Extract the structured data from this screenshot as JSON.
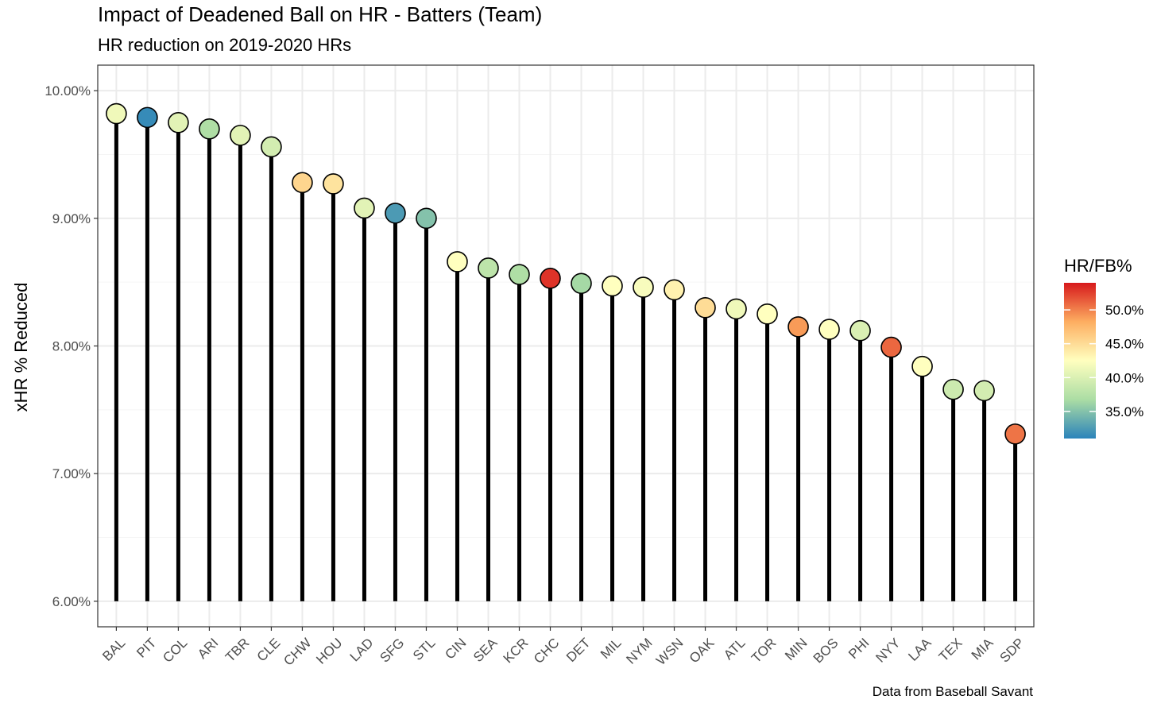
{
  "chart_data": {
    "type": "lollipop",
    "title": "Impact of Deadened Ball on HR - Batters (Team)",
    "subtitle": "HR reduction on 2019-2020 HRs",
    "ylabel": "xHR % Reduced",
    "xlabel": "",
    "caption": "Data from Baseball Savant",
    "ylim": [
      6.0,
      10.0
    ],
    "baseline": 6.0,
    "y_ticks": [
      6,
      7,
      8,
      9,
      10
    ],
    "y_tick_labels": [
      "6.00%",
      "7.00%",
      "8.00%",
      "9.00%",
      "10.00%"
    ],
    "grid": true,
    "categories": [
      "BAL",
      "PIT",
      "COL",
      "ARI",
      "TBR",
      "CLE",
      "CHW",
      "HOU",
      "LAD",
      "SFG",
      "STL",
      "CIN",
      "SEA",
      "KCR",
      "CHC",
      "DET",
      "MIL",
      "NYM",
      "WSN",
      "OAK",
      "ATL",
      "TOR",
      "MIN",
      "BOS",
      "PHI",
      "NYY",
      "LAA",
      "TEX",
      "MIA",
      "SDP"
    ],
    "values": [
      9.82,
      9.79,
      9.75,
      9.7,
      9.65,
      9.56,
      9.28,
      9.27,
      9.08,
      9.04,
      9.0,
      8.66,
      8.61,
      8.56,
      8.53,
      8.49,
      8.47,
      8.46,
      8.44,
      8.3,
      8.29,
      8.25,
      8.15,
      8.13,
      8.12,
      7.99,
      7.84,
      7.66,
      7.65,
      7.31
    ],
    "color_values": [
      41.5,
      31.5,
      40.5,
      37.0,
      40.5,
      39.5,
      45.5,
      44.5,
      40.5,
      32.5,
      35.0,
      42.5,
      38.0,
      37.0,
      53.0,
      36.5,
      42.5,
      42.0,
      43.5,
      45.0,
      41.5,
      42.5,
      49.0,
      42.5,
      40.0,
      51.0,
      42.5,
      39.0,
      39.5,
      50.5
    ],
    "legend": {
      "title": "HR/FB%",
      "placement": "right",
      "labels": [
        "50.0%",
        "45.0%",
        "40.0%",
        "35.0%"
      ],
      "values": [
        50,
        45,
        40,
        35
      ],
      "range": [
        31,
        54
      ]
    },
    "colors": {
      "stem": "#000000",
      "grid_major": "#ebebeb",
      "grid_minor": "#f5f5f5",
      "panel_border": "#333333",
      "scale_stops": [
        "#2b83ba",
        "#abdda4",
        "#ffffbf",
        "#fdae61",
        "#d7191c"
      ]
    }
  }
}
